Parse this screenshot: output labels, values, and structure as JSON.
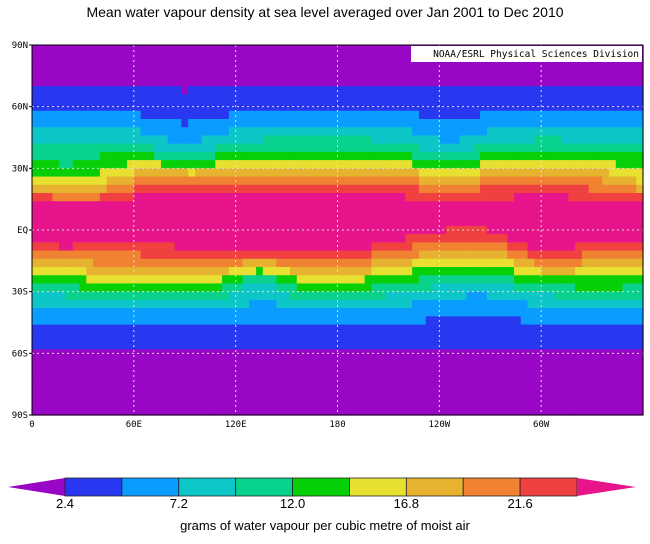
{
  "chart_data": {
    "type": "heatmap",
    "title": "Mean water vapour density at sea level averaged over Jan 2001 to Dec 2010",
    "credit": "NOAA/ESRL Physical Sciences Division",
    "y_ticks": [
      "90N",
      "60N",
      "30N",
      "EQ",
      "30S",
      "60S",
      "90S"
    ],
    "y_values": [
      90,
      60,
      30,
      0,
      -30,
      -60,
      -90
    ],
    "x_ticks": [
      "0",
      "60E",
      "120E",
      "180",
      "120W",
      "60W"
    ],
    "x_values": [
      0,
      60,
      120,
      180,
      240,
      300
    ],
    "xlim": [
      0,
      360
    ],
    "ylim": [
      -90,
      90
    ],
    "grid": true,
    "colorbar": {
      "levels": [
        2.4,
        4.8,
        7.2,
        9.6,
        12.0,
        14.4,
        16.8,
        19.2,
        21.6,
        24.0
      ],
      "labels": [
        "2.4",
        "7.2",
        "12.0",
        "16.8",
        "21.6"
      ],
      "label_levels": [
        2.4,
        7.2,
        12.0,
        16.8,
        21.6
      ],
      "colors": [
        "#9a06c6",
        "#2838f0",
        "#0a9cff",
        "#0cc6c8",
        "#08d28c",
        "#08d008",
        "#e8e030",
        "#e6b230",
        "#f08232",
        "#f04040",
        "#e8148c"
      ],
      "caption": "grams of water vapour per cubic metre of moist air",
      "placement": "bottom"
    }
  }
}
